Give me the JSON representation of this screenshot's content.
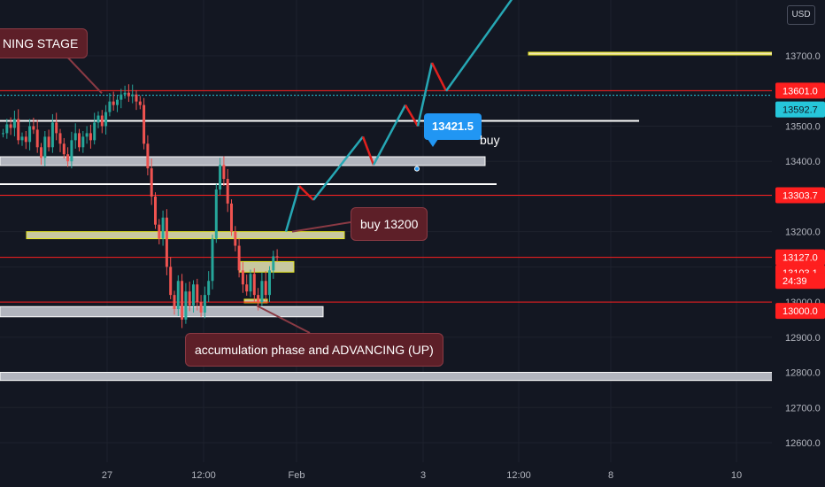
{
  "chart_data": {
    "type": "candlestick",
    "currency": "USD",
    "ylim": [
      12550,
      13800
    ],
    "y_ticks": [
      12600,
      12700,
      12800,
      12900,
      13000,
      13100,
      13200,
      13300,
      13400,
      13500,
      13600,
      13700
    ],
    "x_ticks": [
      "27",
      "12:00",
      "Feb",
      "3",
      "12:00",
      "8",
      "10"
    ],
    "price_labels": [
      {
        "value": "13601.0",
        "color": "#ff1f1f"
      },
      {
        "value": "13592.7",
        "color": "#26c6da"
      },
      {
        "value": "13303.7",
        "color": "#ff1f1f"
      },
      {
        "value": "13127.0",
        "color": "#ff1f1f"
      },
      {
        "value": "13103.1",
        "color": "#ff1f1f"
      },
      {
        "value": "24:39",
        "color": "#ff1f1f"
      },
      {
        "value": "13000.0",
        "color": "#ff1f1f"
      }
    ],
    "red_levels": [
      13601,
      13303.7,
      13127,
      13000
    ],
    "candles_close": [
      13480,
      13505,
      13495,
      13520,
      13460,
      13470,
      13455,
      13500,
      13490,
      13440,
      13410,
      13470,
      13440,
      13510,
      13480,
      13450,
      13420,
      13400,
      13460,
      13480,
      13440,
      13470,
      13480,
      13460,
      13510,
      13530,
      13500,
      13540,
      13570,
      13560,
      13575,
      13590,
      13595,
      13585,
      13590,
      13570,
      13560,
      13450,
      13380,
      13300,
      13220,
      13180,
      13240,
      13100,
      13020,
      12980,
      13060,
      12950,
      13030,
      12990,
      13050,
      13000,
      12970,
      13020,
      13060,
      13180,
      13320,
      13390,
      13350,
      13280,
      13200,
      13160,
      13090,
      13050,
      13030,
      13080,
      13020,
      13000,
      13060,
      13020,
      13090,
      13130,
      13127
    ],
    "projection": [
      13200,
      13330,
      13290,
      13470,
      13390,
      13560,
      13500,
      13680,
      13600,
      13860
    ],
    "annotations": {
      "top_callout": "NING STAGE",
      "buy_callout": "buy 13200",
      "accum_callout": "accumulation phase and  ADVANCING (UP)",
      "flag_price": "13421.5",
      "buy_text": "buy"
    }
  },
  "badge": {
    "currency": "USD"
  }
}
